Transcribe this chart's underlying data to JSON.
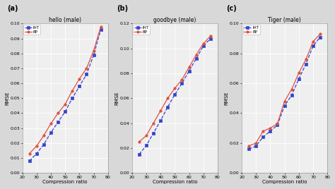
{
  "subplots": [
    {
      "label": "(a)",
      "title": "hello (male)",
      "x": [
        25,
        30,
        35,
        40,
        45,
        50,
        55,
        60,
        65,
        70,
        75
      ],
      "bp_y": [
        0.013,
        0.018,
        0.025,
        0.033,
        0.04,
        0.046,
        0.055,
        0.063,
        0.07,
        0.082,
        0.098
      ],
      "iht_y": [
        0.008,
        0.013,
        0.019,
        0.027,
        0.034,
        0.041,
        0.05,
        0.058,
        0.066,
        0.079,
        0.096
      ],
      "ylim": [
        0,
        0.1
      ],
      "ytick_max": 0.1,
      "ytick_step": 0.01
    },
    {
      "label": "(b)",
      "title": "goodbye (male)",
      "x": [
        25,
        30,
        35,
        40,
        45,
        50,
        55,
        60,
        65,
        70,
        75
      ],
      "bp_y": [
        0.025,
        0.03,
        0.04,
        0.05,
        0.06,
        0.068,
        0.075,
        0.085,
        0.095,
        0.104,
        0.11
      ],
      "iht_y": [
        0.015,
        0.022,
        0.032,
        0.042,
        0.053,
        0.063,
        0.072,
        0.082,
        0.092,
        0.102,
        0.108
      ],
      "ylim": [
        0,
        0.12
      ],
      "ytick_max": 0.12,
      "ytick_step": 0.02
    },
    {
      "label": "(c)",
      "title": "Tiger (male)",
      "x": [
        25,
        30,
        35,
        40,
        45,
        50,
        55,
        60,
        65,
        70,
        75
      ],
      "bp_y": [
        0.018,
        0.02,
        0.028,
        0.03,
        0.033,
        0.048,
        0.056,
        0.067,
        0.076,
        0.088,
        0.093
      ],
      "iht_y": [
        0.016,
        0.018,
        0.024,
        0.028,
        0.032,
        0.045,
        0.052,
        0.063,
        0.073,
        0.085,
        0.091
      ],
      "ylim": [
        0,
        0.1
      ],
      "ytick_max": 0.1,
      "ytick_step": 0.02
    }
  ],
  "xlabel": "Compression ratio",
  "ylabel": "RMSE",
  "bp_color": "#e05040",
  "iht_color": "#3344cc",
  "bg_color": "#efefef",
  "fig_color": "#d8d8d8",
  "grid_color": "#ffffff",
  "xlim": [
    20,
    80
  ],
  "xticks": [
    20,
    30,
    40,
    50,
    60,
    70,
    80
  ]
}
